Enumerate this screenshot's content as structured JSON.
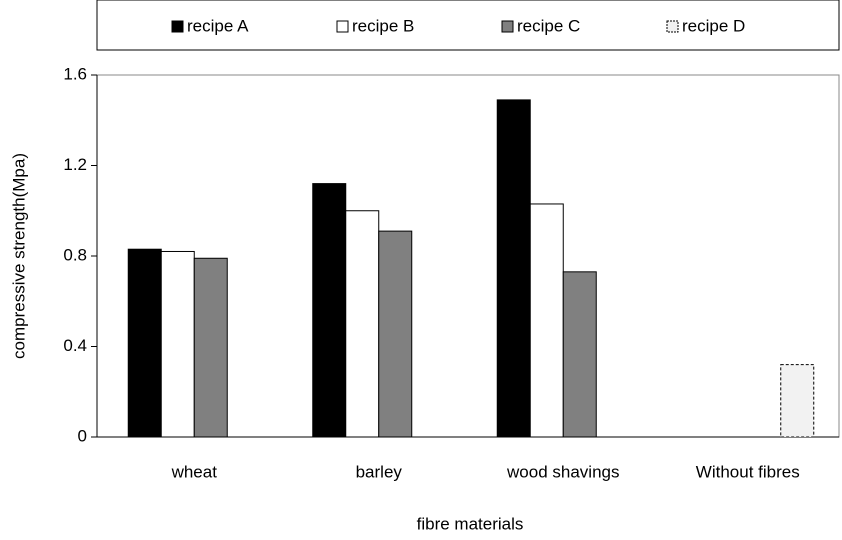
{
  "chart_data": {
    "type": "bar",
    "categories": [
      "wheat",
      "barley",
      "wood shavings",
      "Without fibres"
    ],
    "series": [
      {
        "name": "recipe A",
        "color": "#000000",
        "values": [
          0.83,
          1.12,
          1.49,
          null
        ]
      },
      {
        "name": "recipe B",
        "color": "#ffffff",
        "values": [
          0.82,
          1.0,
          1.03,
          null
        ]
      },
      {
        "name": "recipe C",
        "color": "#808080",
        "values": [
          0.79,
          0.91,
          0.73,
          null
        ]
      },
      {
        "name": "recipe D",
        "color": "#f2f2f2",
        "dashed": true,
        "values": [
          null,
          null,
          null,
          0.32
        ]
      }
    ],
    "ylim": [
      0,
      1.6
    ],
    "yticks": [
      0,
      0.4,
      0.8,
      1.2,
      1.6
    ],
    "x_label": "fibre materials",
    "y_label": "compressive strength(Mpa)",
    "grid": false,
    "legend": "top"
  }
}
